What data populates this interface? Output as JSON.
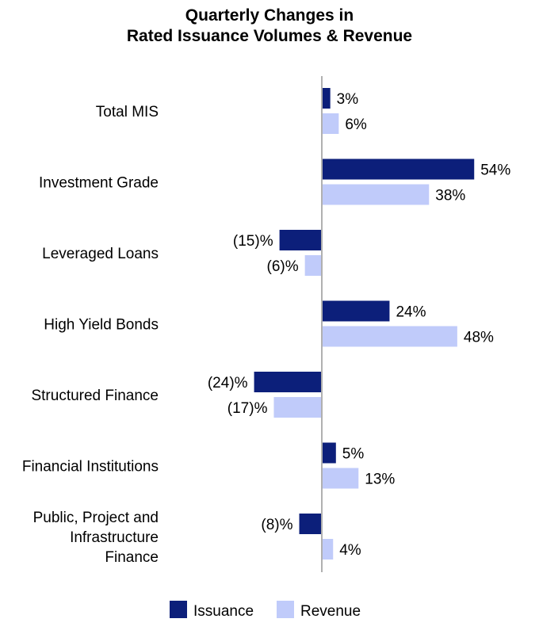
{
  "chart_data": {
    "type": "bar",
    "orientation": "horizontal",
    "title_lines": [
      "Quarterly Changes in",
      "Rated Issuance Volumes & Revenue"
    ],
    "categories": [
      [
        "Total MIS"
      ],
      [
        "Investment Grade"
      ],
      [
        "Leveraged Loans"
      ],
      [
        "High Yield Bonds"
      ],
      [
        "Structured Finance"
      ],
      [
        "Financial Institutions"
      ],
      [
        "Public, Project and",
        "Infrastructure",
        "Finance"
      ]
    ],
    "series": [
      {
        "name": "Issuance",
        "color": "#0c1f7a",
        "values": [
          3,
          54,
          -15,
          24,
          -24,
          5,
          -8
        ],
        "labels": [
          "3%",
          "54%",
          "(15)%",
          "24%",
          "(24)%",
          "5%",
          "(8)%"
        ]
      },
      {
        "name": "Revenue",
        "color": "#c0cbfa",
        "values": [
          6,
          38,
          -6,
          48,
          -17,
          13,
          4
        ],
        "labels": [
          "6%",
          "38%",
          "(6)%",
          "48%",
          "(17)%",
          "13%",
          "4%"
        ]
      }
    ],
    "axis_color": "#b0b0b0",
    "grid": false,
    "legend_position": "bottom"
  }
}
